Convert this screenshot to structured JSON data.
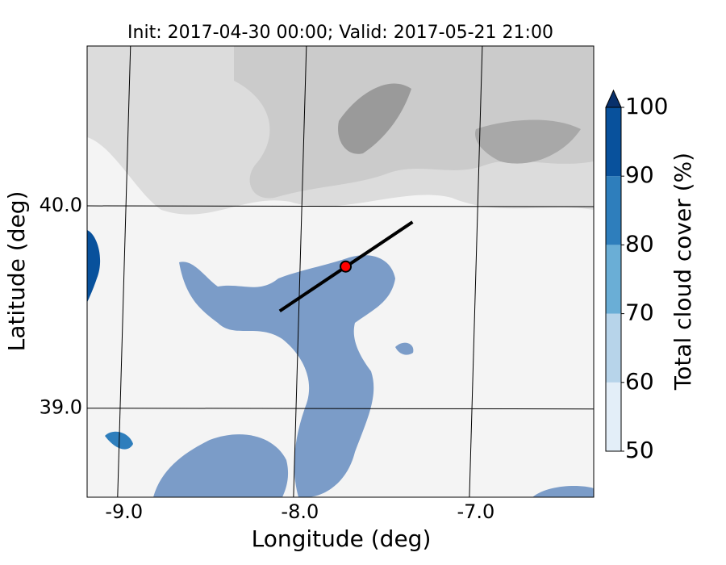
{
  "chart_data": {
    "type": "map",
    "title": "Init: 2017-04-30 00:00; Valid: 2017-05-21 21:00",
    "xlabel": "Longitude (deg)",
    "ylabel": "Latitude (deg)",
    "xlim": [
      -9.21,
      -6.33
    ],
    "ylim": [
      38.56,
      40.79
    ],
    "xticks": [
      {
        "value": -9,
        "label": "-9.0"
      },
      {
        "value": -8,
        "label": "-8.0"
      },
      {
        "value": -7,
        "label": "-7.0"
      }
    ],
    "yticks": [
      {
        "value": 39,
        "label": "39.0"
      },
      {
        "value": 40,
        "label": "40.0"
      }
    ],
    "grid": true,
    "transect": {
      "lon": [
        -8.115,
        -7.36
      ],
      "lat": [
        39.48,
        39.92
      ],
      "color": "#000000"
    },
    "point": {
      "lon": -7.74,
      "lat": 39.7,
      "color": "#ff0000"
    },
    "colorbar": {
      "label": "Total cloud cover (%)",
      "ticks": [
        50,
        60,
        70,
        80,
        90,
        100
      ],
      "colors": [
        "#e3eef8",
        "#b7d4ea",
        "#6aaed6",
        "#2e7ebc",
        "#08519c"
      ],
      "extend_color": "#08306b"
    }
  }
}
